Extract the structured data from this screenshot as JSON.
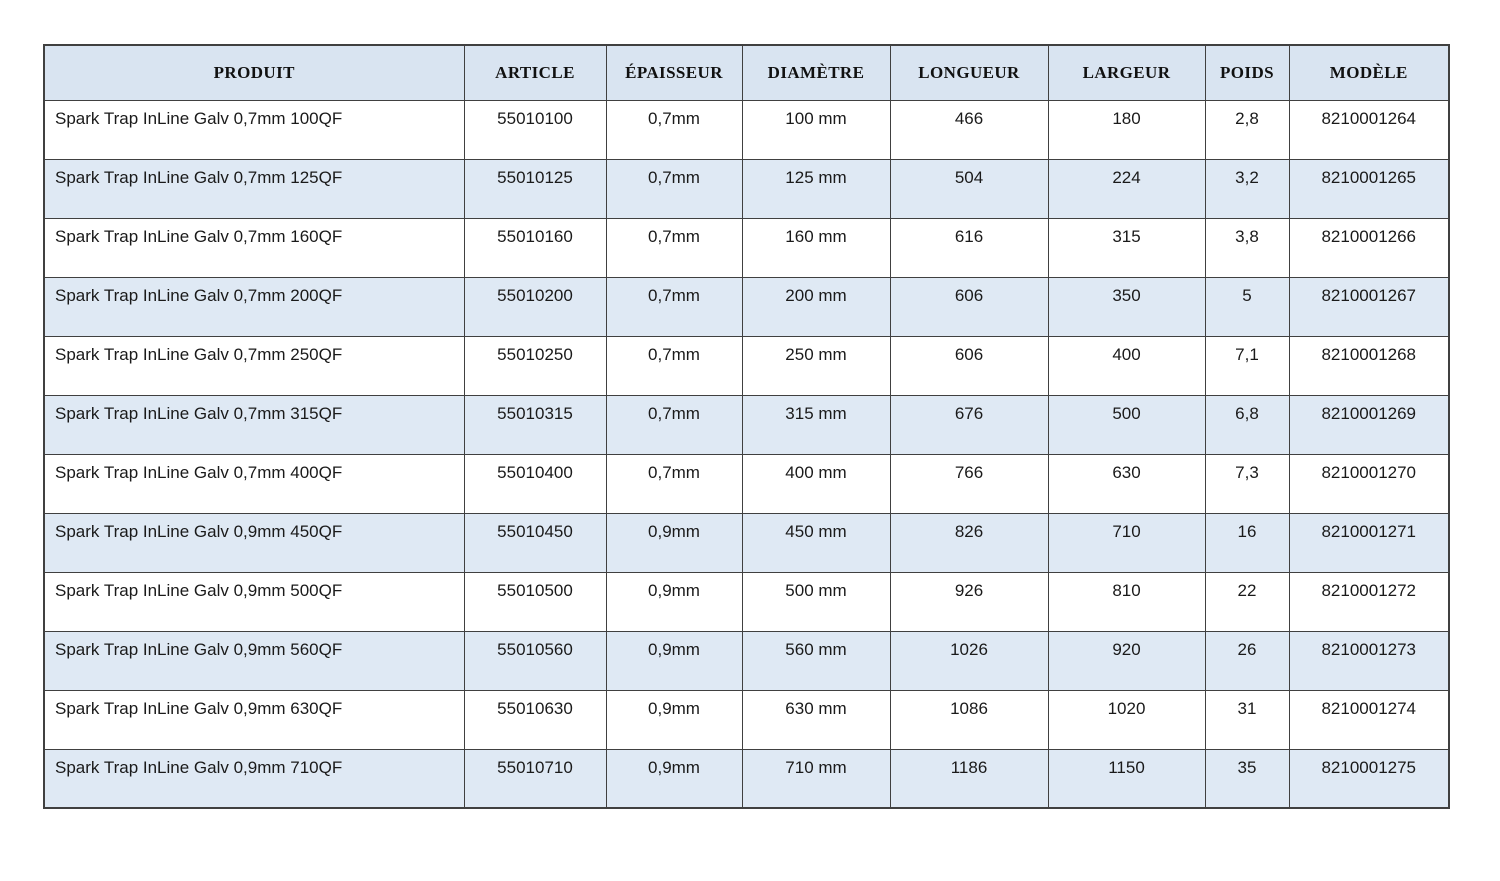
{
  "table": {
    "columns": [
      {
        "key": "produit",
        "label": "PRODUIT"
      },
      {
        "key": "article",
        "label": "ARTICLE"
      },
      {
        "key": "epaisseur",
        "label": "ÉPAISSEUR"
      },
      {
        "key": "diametre",
        "label": "DIAMÈTRE"
      },
      {
        "key": "longueur",
        "label": "LONGUEUR"
      },
      {
        "key": "largeur",
        "label": "LARGEUR"
      },
      {
        "key": "poids",
        "label": "POIDS"
      },
      {
        "key": "modele",
        "label": "MODÈLE"
      }
    ],
    "rows": [
      [
        "Spark Trap InLine Galv 0,7mm 100QF",
        "55010100",
        "0,7mm",
        "100 mm",
        "466",
        "180",
        "2,8",
        "8210001264"
      ],
      [
        "Spark Trap InLine Galv 0,7mm 125QF",
        "55010125",
        "0,7mm",
        "125 mm",
        "504",
        "224",
        "3,2",
        "8210001265"
      ],
      [
        "Spark Trap InLine Galv 0,7mm 160QF",
        "55010160",
        "0,7mm",
        "160 mm",
        "616",
        "315",
        "3,8",
        "8210001266"
      ],
      [
        "Spark Trap InLine Galv 0,7mm 200QF",
        "55010200",
        "0,7mm",
        "200 mm",
        "606",
        "350",
        "5",
        "8210001267"
      ],
      [
        "Spark Trap InLine Galv 0,7mm 250QF",
        "55010250",
        "0,7mm",
        "250 mm",
        "606",
        "400",
        "7,1",
        "8210001268"
      ],
      [
        "Spark Trap InLine Galv 0,7mm 315QF",
        "55010315",
        "0,7mm",
        "315 mm",
        "676",
        "500",
        "6,8",
        "8210001269"
      ],
      [
        "Spark Trap InLine Galv 0,7mm 400QF",
        "55010400",
        "0,7mm",
        "400 mm",
        "766",
        "630",
        "7,3",
        "8210001270"
      ],
      [
        "Spark Trap InLine Galv 0,9mm 450QF",
        "55010450",
        "0,9mm",
        "450 mm",
        "826",
        "710",
        "16",
        "8210001271"
      ],
      [
        "Spark Trap InLine Galv 0,9mm 500QF",
        "55010500",
        "0,9mm",
        "500 mm",
        "926",
        "810",
        "22",
        "8210001272"
      ],
      [
        "Spark Trap InLine Galv 0,9mm 560QF",
        "55010560",
        "0,9mm",
        "560 mm",
        "1026",
        "920",
        "26",
        "8210001273"
      ],
      [
        "Spark Trap InLine Galv 0,9mm 630QF",
        "55010630",
        "0,9mm",
        "630 mm",
        "1086",
        "1020",
        "31",
        "8210001274"
      ],
      [
        "Spark Trap InLine Galv 0,9mm 710QF",
        "55010710",
        "0,9mm",
        "710 mm",
        "1186",
        "1150",
        "35",
        "8210001275"
      ]
    ]
  },
  "colors": {
    "header_bg": "#d9e4f1",
    "band_bg": "#dfe9f4",
    "border": "#404040",
    "page_bg": "#ffffff"
  }
}
